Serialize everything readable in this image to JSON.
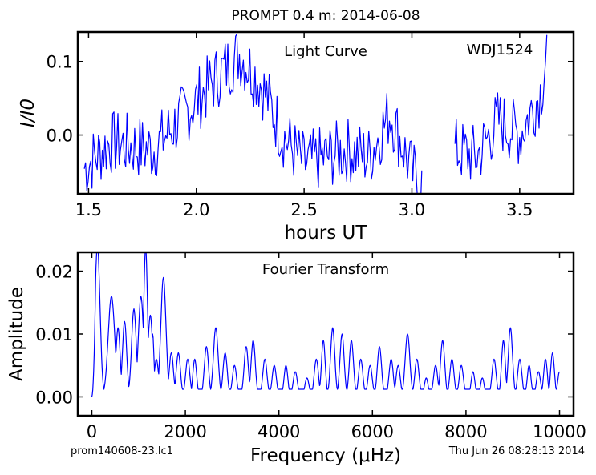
{
  "page": {
    "title": "PROMPT 0.4 m:  2014-06-08",
    "footer_left": "prom140608-23.lc1",
    "footer_right": "Thu Jun 26 08:28:13 2014"
  },
  "colors": {
    "trace": "#0000ff",
    "axes": "#000000",
    "background": "#ffffff"
  },
  "chart_data": [
    {
      "id": "light-curve",
      "type": "line",
      "title": "Light Curve",
      "annotation": "WDJ1524",
      "xlabel": "hours UT",
      "ylabel": "I/I0",
      "xlim": [
        1.45,
        3.75
      ],
      "ylim": [
        -0.08,
        0.14
      ],
      "xticks": [
        1.5,
        2.0,
        2.5,
        3.0,
        3.5
      ],
      "xtick_labels": [
        "1.5",
        "2.0",
        "2.5",
        "3.0",
        "3.5"
      ],
      "yticks": [
        0.0,
        0.1
      ],
      "ytick_labels": [
        "0.0",
        "0.1"
      ],
      "segments": [
        {
          "x_start": 1.48,
          "x_end": 3.05,
          "dx": 0.006,
          "trend": [
            [
              1.48,
              -0.045
            ],
            [
              1.6,
              -0.01
            ],
            [
              1.8,
              -0.02
            ],
            [
              1.95,
              0.03
            ],
            [
              2.1,
              0.08
            ],
            [
              2.2,
              0.11
            ],
            [
              2.3,
              0.07
            ],
            [
              2.4,
              0.0
            ],
            [
              2.5,
              -0.04
            ],
            [
              2.6,
              -0.03
            ],
            [
              2.7,
              -0.02
            ],
            [
              2.8,
              -0.03
            ],
            [
              2.9,
              0.03
            ],
            [
              3.0,
              -0.05
            ],
            [
              3.05,
              -0.07
            ]
          ],
          "amp": 0.045
        },
        {
          "x_start": 3.2,
          "x_end": 3.63,
          "dx": 0.006,
          "trend": [
            [
              3.2,
              -0.02
            ],
            [
              3.3,
              -0.03
            ],
            [
              3.4,
              0.02
            ],
            [
              3.5,
              0.0
            ],
            [
              3.6,
              0.06
            ],
            [
              3.63,
              0.13
            ]
          ],
          "amp": 0.045
        }
      ]
    },
    {
      "id": "fourier-transform",
      "type": "line",
      "title": "Fourier Transform",
      "xlabel": "Frequency (μHz)",
      "ylabel": "Amplitude",
      "xlim": [
        -300,
        10300
      ],
      "ylim": [
        -0.003,
        0.023
      ],
      "xticks": [
        0,
        2000,
        4000,
        6000,
        8000,
        10000
      ],
      "xtick_labels": [
        "0",
        "2000",
        "4000",
        "6000",
        "8000",
        "10000"
      ],
      "yticks": [
        0.0,
        0.01,
        0.02
      ],
      "ytick_labels": [
        "0.00",
        "0.01",
        "0.02"
      ],
      "peaks": [
        [
          120,
          0.024,
          55
        ],
        [
          420,
          0.016,
          70
        ],
        [
          560,
          0.011,
          45
        ],
        [
          700,
          0.012,
          45
        ],
        [
          900,
          0.014,
          50
        ],
        [
          1050,
          0.016,
          55
        ],
        [
          1150,
          0.024,
          40
        ],
        [
          1250,
          0.013,
          50
        ],
        [
          1300,
          0.01,
          30
        ],
        [
          1380,
          0.006,
          45
        ],
        [
          1530,
          0.019,
          55
        ],
        [
          1700,
          0.007,
          45
        ],
        [
          1850,
          0.007,
          45
        ],
        [
          2050,
          0.006,
          45
        ],
        [
          2200,
          0.006,
          40
        ],
        [
          2450,
          0.008,
          45
        ],
        [
          2650,
          0.011,
          50
        ],
        [
          2850,
          0.007,
          45
        ],
        [
          3050,
          0.005,
          45
        ],
        [
          3300,
          0.008,
          45
        ],
        [
          3450,
          0.009,
          45
        ],
        [
          3700,
          0.006,
          45
        ],
        [
          3900,
          0.005,
          45
        ],
        [
          4150,
          0.005,
          40
        ],
        [
          4350,
          0.004,
          45
        ],
        [
          4600,
          0.003,
          45
        ],
        [
          4800,
          0.006,
          45
        ],
        [
          4950,
          0.009,
          40
        ],
        [
          5150,
          0.011,
          45
        ],
        [
          5350,
          0.01,
          45
        ],
        [
          5550,
          0.009,
          45
        ],
        [
          5750,
          0.006,
          45
        ],
        [
          5950,
          0.005,
          45
        ],
        [
          6150,
          0.008,
          45
        ],
        [
          6400,
          0.006,
          45
        ],
        [
          6550,
          0.005,
          45
        ],
        [
          6750,
          0.01,
          50
        ],
        [
          6950,
          0.006,
          45
        ],
        [
          7150,
          0.003,
          40
        ],
        [
          7350,
          0.005,
          45
        ],
        [
          7500,
          0.009,
          45
        ],
        [
          7700,
          0.006,
          45
        ],
        [
          7900,
          0.005,
          45
        ],
        [
          8150,
          0.004,
          40
        ],
        [
          8350,
          0.003,
          40
        ],
        [
          8600,
          0.006,
          45
        ],
        [
          8800,
          0.009,
          40
        ],
        [
          8950,
          0.011,
          45
        ],
        [
          9150,
          0.006,
          45
        ],
        [
          9350,
          0.005,
          40
        ],
        [
          9550,
          0.004,
          45
        ],
        [
          9700,
          0.006,
          40
        ],
        [
          9850,
          0.007,
          40
        ],
        [
          10000,
          0.004,
          40
        ]
      ]
    }
  ]
}
